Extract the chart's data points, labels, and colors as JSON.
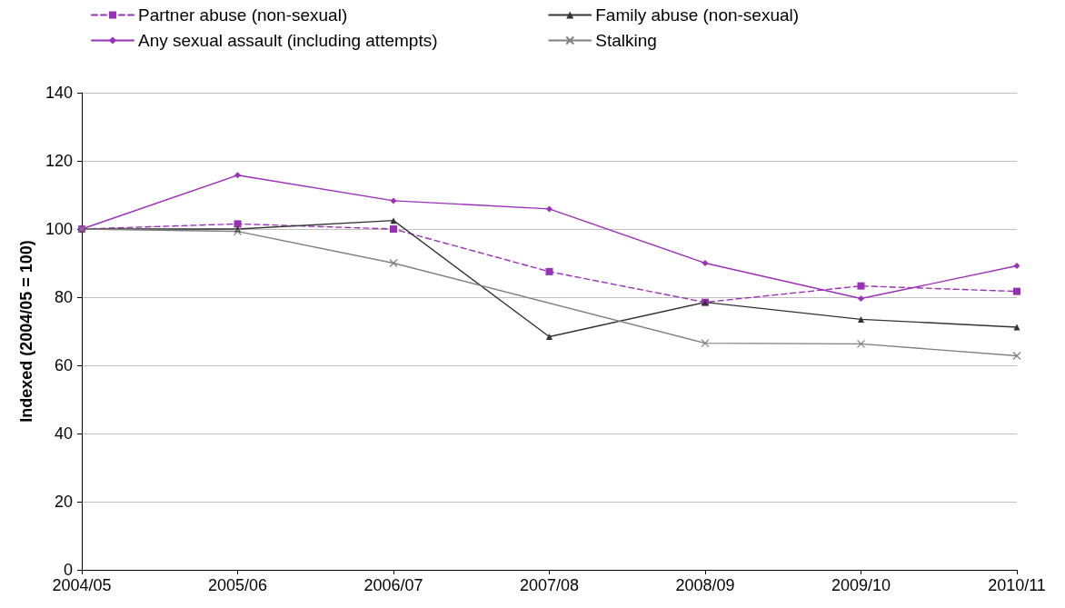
{
  "chart_data": {
    "type": "line",
    "ylabel": "Indexed (2004/05 = 100)",
    "categories": [
      "2004/05",
      "2005/06",
      "2006/07",
      "2007/08",
      "2008/09",
      "2009/10",
      "2010/11"
    ],
    "series": [
      {
        "name": "Partner abuse (non-sexual)",
        "color": "#9b30b8",
        "marker": "square",
        "line_style": "dashed",
        "values": [
          100,
          101.5,
          100,
          87.5,
          78.5,
          83.3,
          81.7
        ]
      },
      {
        "name": "Family abuse (non-sexual)",
        "color": "#333333",
        "marker": "triangle",
        "line_style": "solid",
        "values": [
          100,
          100,
          102.5,
          68.4,
          78.5,
          73.5,
          71.2
        ]
      },
      {
        "name": "Any sexual assault (including attempts)",
        "color": "#9b30b8",
        "marker": "diamond",
        "line_style": "solid",
        "values": [
          100,
          115.8,
          108.3,
          105.9,
          90,
          79.6,
          89.2
        ]
      },
      {
        "name": "Stalking",
        "color": "#808080",
        "marker": "cross",
        "line_style": "solid",
        "values": [
          100,
          99.3,
          90,
          null,
          66.5,
          66.3,
          62.8
        ]
      }
    ],
    "ylim": [
      0,
      140
    ],
    "yticks": [
      0,
      20,
      40,
      60,
      80,
      100,
      120,
      140
    ],
    "grid": "y",
    "legend": "top"
  }
}
